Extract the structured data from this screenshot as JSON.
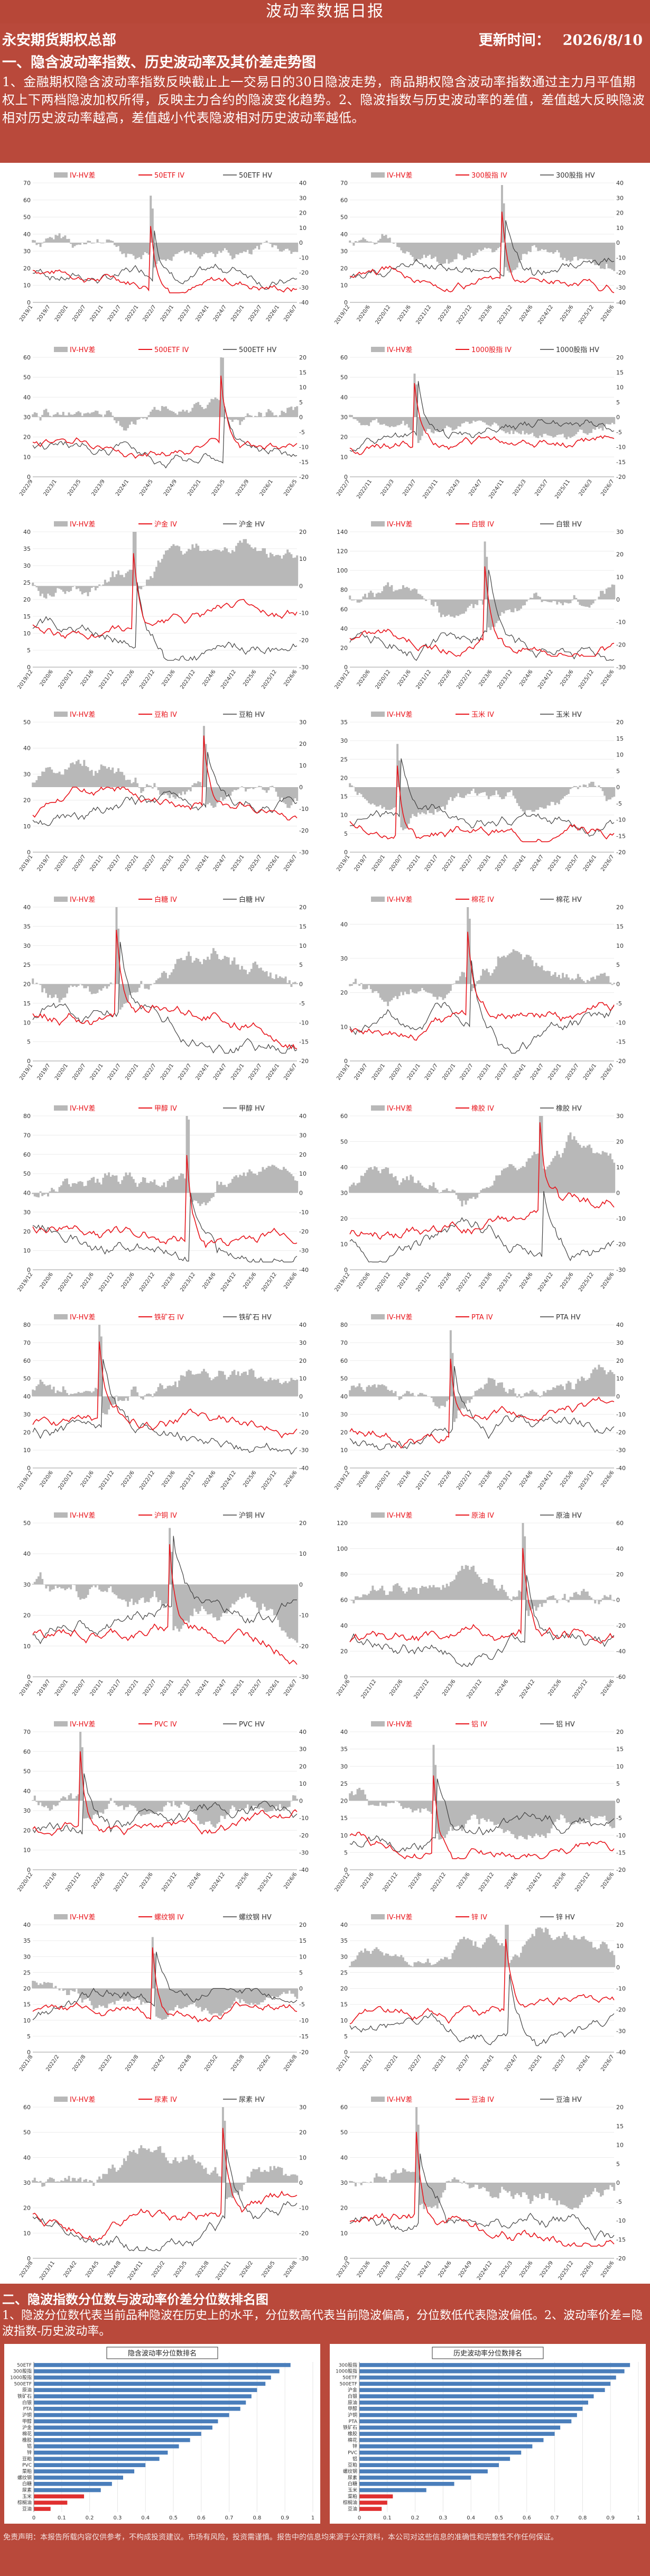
{
  "header": {
    "title": "波动率数据日报",
    "company": "永安期货期权总部",
    "update_label": "更新时间：",
    "update_date": "2026/8/10",
    "section1_title": "一、隐含波动率指数、历史波动率及其价差走势图",
    "section1_desc": "1、金融期权隐含波动率指数反映截止上一交易日的30日隐波走势，商品期权隐含波动率指数通过主力月平值期权上下两档隐波加权所得，反映主力合约的隐波变化趋势。2、隐波指数与历史波动率的差值，差值越大反映隐波相对历史波动率越高，差值越小代表隐波相对历史波动率越低。"
  },
  "colors": {
    "header_bg": "#b74738",
    "panel_bg": "#b9493b",
    "iv": "#e8141b",
    "hv": "#404040",
    "diff": "#b8b8b8",
    "rank_bar": "#4a7ebb",
    "rank_bar_low": "#e03030"
  },
  "chart_data": [
    {
      "type": "line",
      "series": [
        {
          "name": "IV-HV差"
        },
        {
          "name": "50ETF IV"
        },
        {
          "name": "50ETF HV"
        }
      ],
      "ylim_left": [
        0,
        70
      ],
      "ylim_right": [
        -40,
        40
      ],
      "xticks": [
        "2019/1",
        "2019/7",
        "2020/1",
        "2020/7",
        "2021/1",
        "2021/7",
        "2022/1",
        "2022/7",
        "2023/1",
        "2023/7",
        "2024/1",
        "2024/7",
        "2025/1",
        "2025/7",
        "2026/1",
        "2026/7"
      ]
    },
    {
      "type": "line",
      "series": [
        {
          "name": "IV-HV差"
        },
        {
          "name": "300股指 IV"
        },
        {
          "name": "300股指 HV"
        }
      ],
      "ylim_left": [
        0,
        70
      ],
      "ylim_right": [
        -40,
        40
      ],
      "xticks": [
        "2019/12",
        "2020/6",
        "2020/12",
        "2021/6",
        "2021/12",
        "2022/6",
        "2022/12",
        "2023/6",
        "2023/12",
        "2024/6",
        "2024/12",
        "2025/6",
        "2025/12",
        "2026/6"
      ]
    },
    {
      "type": "line",
      "series": [
        {
          "name": "IV-HV差"
        },
        {
          "name": "500ETF IV"
        },
        {
          "name": "500ETF HV"
        }
      ],
      "ylim_left": [
        0,
        60
      ],
      "ylim_right": [
        -20,
        20
      ],
      "xticks": [
        "2022/9",
        "2023/1",
        "2023/5",
        "2023/9",
        "2024/1",
        "2024/5",
        "2024/9",
        "2025/1",
        "2025/5",
        "2025/9",
        "2026/1",
        "2026/5"
      ]
    },
    {
      "type": "line",
      "series": [
        {
          "name": "IV-HV差"
        },
        {
          "name": "1000股指 IV"
        },
        {
          "name": "1000股指 HV"
        }
      ],
      "ylim_left": [
        0,
        60
      ],
      "ylim_right": [
        -20,
        20
      ],
      "xticks": [
        "2022/7",
        "2022/11",
        "2023/3",
        "2023/7",
        "2023/11",
        "2024/3",
        "2024/7",
        "2024/11",
        "2025/3",
        "2025/7",
        "2025/11",
        "2026/3",
        "2026/7"
      ]
    },
    {
      "type": "line",
      "series": [
        {
          "name": "IV-HV差"
        },
        {
          "name": "沪金 IV"
        },
        {
          "name": "沪金 HV"
        }
      ],
      "ylim_left": [
        0,
        40
      ],
      "ylim_right": [
        -30,
        20
      ],
      "xticks": [
        "2019/12",
        "2020/6",
        "2020/12",
        "2021/6",
        "2021/12",
        "2022/6",
        "2022/12",
        "2023/6",
        "2023/12",
        "2024/6",
        "2024/12",
        "2025/6",
        "2025/12",
        "2026/6"
      ]
    },
    {
      "type": "line",
      "series": [
        {
          "name": "IV-HV差"
        },
        {
          "name": "白银 IV"
        },
        {
          "name": "白银 HV"
        }
      ],
      "ylim_left": [
        0,
        140
      ],
      "ylim_right": [
        -30,
        30
      ],
      "xticks": [
        "2019/12",
        "2020/6",
        "2020/12",
        "2021/6",
        "2021/12",
        "2022/6",
        "2022/12",
        "2023/6",
        "2023/12",
        "2024/6",
        "2024/12",
        "2025/6",
        "2025/12",
        "2026/6"
      ]
    },
    {
      "type": "line",
      "series": [
        {
          "name": "IV-HV差"
        },
        {
          "name": "豆粕 IV"
        },
        {
          "name": "豆粕 HV"
        }
      ],
      "ylim_left": [
        0,
        50
      ],
      "ylim_right": [
        -30,
        30
      ],
      "xticks": [
        "2019/1",
        "2019/7",
        "2020/1",
        "2020/7",
        "2021/1",
        "2021/7",
        "2022/1",
        "2022/7",
        "2023/1",
        "2023/7",
        "2024/1",
        "2024/7",
        "2025/1",
        "2025/7",
        "2026/1",
        "2026/7"
      ]
    },
    {
      "type": "line",
      "series": [
        {
          "name": "IV-HV差"
        },
        {
          "name": "玉米 IV"
        },
        {
          "name": "玉米 HV"
        }
      ],
      "ylim_left": [
        0,
        35
      ],
      "ylim_right": [
        -20,
        20
      ],
      "xticks": [
        "2019/1",
        "2019/7",
        "2020/1",
        "2020/7",
        "2021/1",
        "2021/7",
        "2022/1",
        "2022/7",
        "2023/1",
        "2023/7",
        "2024/1",
        "2024/7",
        "2025/1",
        "2025/7",
        "2026/1",
        "2026/7"
      ]
    },
    {
      "type": "line",
      "series": [
        {
          "name": "IV-HV差"
        },
        {
          "name": "白糖 IV"
        },
        {
          "name": "白糖 HV"
        }
      ],
      "ylim_left": [
        0,
        40
      ],
      "ylim_right": [
        -20,
        20
      ],
      "xticks": [
        "2019/1",
        "2019/7",
        "2020/1",
        "2020/7",
        "2021/1",
        "2021/7",
        "2022/1",
        "2022/7",
        "2023/1",
        "2023/7",
        "2024/1",
        "2024/7",
        "2025/1",
        "2025/7",
        "2026/1",
        "2026/7"
      ]
    },
    {
      "type": "line",
      "series": [
        {
          "name": "IV-HV差"
        },
        {
          "name": "棉花 IV"
        },
        {
          "name": "棉花 HV"
        }
      ],
      "ylim_left": [
        0,
        45
      ],
      "ylim_right": [
        -20,
        20
      ],
      "xticks": [
        "2019/1",
        "2019/7",
        "2020/1",
        "2020/7",
        "2021/1",
        "2021/7",
        "2022/1",
        "2022/7",
        "2023/1",
        "2023/7",
        "2024/1",
        "2024/7",
        "2025/1",
        "2025/7",
        "2026/1",
        "2026/7"
      ]
    },
    {
      "type": "line",
      "series": [
        {
          "name": "IV-HV差"
        },
        {
          "name": "甲醇 IV"
        },
        {
          "name": "甲醇 HV"
        }
      ],
      "ylim_left": [
        0,
        80
      ],
      "ylim_right": [
        -40,
        40
      ],
      "xticks": [
        "2019/12",
        "2020/6",
        "2020/12",
        "2021/6",
        "2021/12",
        "2022/6",
        "2022/12",
        "2023/6",
        "2023/12",
        "2024/6",
        "2024/12",
        "2025/6",
        "2025/12",
        "2026/6"
      ]
    },
    {
      "type": "line",
      "series": [
        {
          "name": "IV-HV差"
        },
        {
          "name": "橡胶 IV"
        },
        {
          "name": "橡胶 HV"
        }
      ],
      "ylim_left": [
        0,
        60
      ],
      "ylim_right": [
        -30,
        30
      ],
      "xticks": [
        "2019/12",
        "2020/6",
        "2020/12",
        "2021/6",
        "2021/12",
        "2022/6",
        "2022/12",
        "2023/6",
        "2023/12",
        "2024/6",
        "2024/12",
        "2025/6",
        "2025/12",
        "2026/6"
      ]
    },
    {
      "type": "line",
      "series": [
        {
          "name": "IV-HV差"
        },
        {
          "name": "铁矿石 IV"
        },
        {
          "name": "铁矿石 HV"
        }
      ],
      "ylim_left": [
        0,
        80
      ],
      "ylim_right": [
        -40,
        40
      ],
      "xticks": [
        "2019/12",
        "2020/6",
        "2020/12",
        "2021/6",
        "2021/12",
        "2022/6",
        "2022/12",
        "2023/6",
        "2023/12",
        "2024/6",
        "2024/12",
        "2025/6",
        "2025/12",
        "2026/6"
      ]
    },
    {
      "type": "line",
      "series": [
        {
          "name": "IV-HV差"
        },
        {
          "name": "PTA IV"
        },
        {
          "name": "PTA HV"
        }
      ],
      "ylim_left": [
        0,
        80
      ],
      "ylim_right": [
        -40,
        40
      ],
      "xticks": [
        "2019/12",
        "2020/6",
        "2020/12",
        "2021/6",
        "2021/12",
        "2022/6",
        "2022/12",
        "2023/6",
        "2023/12",
        "2024/6",
        "2024/12",
        "2025/6",
        "2025/12",
        "2026/6"
      ]
    },
    {
      "type": "line",
      "series": [
        {
          "name": "IV-HV差"
        },
        {
          "name": "沪铜 IV"
        },
        {
          "name": "沪铜 HV"
        }
      ],
      "ylim_left": [
        0,
        50
      ],
      "ylim_right": [
        -30,
        20
      ],
      "xticks": [
        "2019/1",
        "2019/7",
        "2020/1",
        "2020/7",
        "2021/1",
        "2021/7",
        "2022/1",
        "2022/7",
        "2023/1",
        "2023/7",
        "2024/1",
        "2024/7",
        "2025/1",
        "2025/7",
        "2026/1",
        "2026/7"
      ]
    },
    {
      "type": "line",
      "series": [
        {
          "name": "IV-HV差"
        },
        {
          "name": "原油 IV"
        },
        {
          "name": "原油 HV"
        }
      ],
      "ylim_left": [
        0,
        120
      ],
      "ylim_right": [
        -60,
        60
      ],
      "xticks": [
        "2021/6",
        "2021/12",
        "2022/6",
        "2022/12",
        "2023/6",
        "2023/12",
        "2024/6",
        "2024/12",
        "2025/6",
        "2025/12",
        "2026/6"
      ]
    },
    {
      "type": "line",
      "series": [
        {
          "name": "IV-HV差"
        },
        {
          "name": "PVC IV"
        },
        {
          "name": "PVC HV"
        }
      ],
      "ylim_left": [
        0,
        70
      ],
      "ylim_right": [
        -40,
        40
      ],
      "xticks": [
        "2020/12",
        "2021/6",
        "2021/12",
        "2022/6",
        "2022/12",
        "2023/6",
        "2023/12",
        "2024/6",
        "2024/12",
        "2025/6",
        "2025/12",
        "2026/6"
      ]
    },
    {
      "type": "line",
      "series": [
        {
          "name": "IV-HV差"
        },
        {
          "name": "铝 IV"
        },
        {
          "name": "铝 HV"
        }
      ],
      "ylim_left": [
        0,
        40
      ],
      "ylim_right": [
        -20,
        20
      ],
      "xticks": [
        "2020/12",
        "2021/6",
        "2021/12",
        "2022/6",
        "2022/12",
        "2023/6",
        "2023/12",
        "2024/6",
        "2024/12",
        "2025/6",
        "2025/12",
        "2026/6"
      ]
    },
    {
      "type": "line",
      "series": [
        {
          "name": "IV-HV差"
        },
        {
          "name": "螺纹钢 IV"
        },
        {
          "name": "螺纹钢 HV"
        }
      ],
      "ylim_left": [
        0,
        40
      ],
      "ylim_right": [
        -20,
        20
      ],
      "xticks": [
        "2021/8",
        "2022/2",
        "2022/8",
        "2023/2",
        "2023/8",
        "2024/2",
        "2024/8",
        "2025/2",
        "2025/8",
        "2026/2",
        "2026/8"
      ]
    },
    {
      "type": "line",
      "series": [
        {
          "name": "IV-HV差"
        },
        {
          "name": "锌 IV"
        },
        {
          "name": "锌 HV"
        }
      ],
      "ylim_left": [
        0,
        40
      ],
      "ylim_right": [
        -40,
        20
      ],
      "xticks": [
        "2021/1",
        "2021/7",
        "2022/1",
        "2022/7",
        "2023/1",
        "2023/7",
        "2024/1",
        "2024/7",
        "2025/1",
        "2025/7",
        "2026/1",
        "2026/7"
      ]
    },
    {
      "type": "line",
      "series": [
        {
          "name": "IV-HV差"
        },
        {
          "name": "尿素 IV"
        },
        {
          "name": "尿素 HV"
        }
      ],
      "ylim_left": [
        0,
        60
      ],
      "ylim_right": [
        -30,
        30
      ],
      "xticks": [
        "2023/8",
        "2023/11",
        "2024/2",
        "2024/5",
        "2024/8",
        "2024/11",
        "2025/2",
        "2025/5",
        "2025/8",
        "2025/11",
        "2026/2",
        "2026/5",
        "2026/8"
      ]
    },
    {
      "type": "line",
      "series": [
        {
          "name": "IV-HV差"
        },
        {
          "name": "豆油 IV"
        },
        {
          "name": "豆油 HV"
        }
      ],
      "ylim_left": [
        0,
        60
      ],
      "ylim_right": [
        -20,
        20
      ],
      "xticks": [
        "2023/3",
        "2023/6",
        "2023/9",
        "2023/12",
        "2024/3",
        "2024/6",
        "2024/9",
        "2024/12",
        "2025/3",
        "2025/6",
        "2025/9",
        "2025/12",
        "2026/3",
        "2026/6"
      ]
    },
    {
      "type": "line",
      "series": [
        {
          "name": "IV-HV差"
        },
        {
          "name": "棕榈油 IV"
        },
        {
          "name": "棕榈油 HV"
        }
      ],
      "ylim_left": [
        0,
        45
      ],
      "ylim_right": [
        -20,
        20
      ],
      "xticks": [
        "2021/6",
        "2021/12",
        "2022/6",
        "2022/12",
        "2023/6",
        "2023/12",
        "2024/6",
        "2024/12",
        "2025/6",
        "2025/12",
        "2026/6"
      ]
    },
    {
      "type": "line",
      "series": [
        {
          "name": "IV-HV差"
        },
        {
          "name": "菜粕 IV"
        },
        {
          "name": "菜粕 HV"
        }
      ],
      "ylim_left": [
        0,
        60
      ],
      "ylim_right": [
        -20,
        20
      ],
      "xticks": [
        "2021/6",
        "2021/12",
        "2022/6",
        "2022/12",
        "2023/6",
        "2023/12",
        "2024/6",
        "2024/12",
        "2025/6",
        "2025/12",
        "2026/6"
      ]
    },
    {
      "type": "bar",
      "orientation": "horizontal",
      "title": "隐含波动率分位数排名",
      "categories": [
        "50ETF",
        "300股指",
        "1000股指",
        "500ETF",
        "原油",
        "铁矿石",
        "白银",
        "PTA",
        "沪铜",
        "甲醇",
        "沪金",
        "棉花",
        "橡胶",
        "铝",
        "锌",
        "豆粕",
        "PVC",
        "菜粕",
        "螺纹钢",
        "白糖",
        "尿素",
        "玉米",
        "棕榈油",
        "豆油"
      ],
      "values": [
        0.92,
        0.88,
        0.85,
        0.83,
        0.8,
        0.78,
        0.76,
        0.74,
        0.7,
        0.66,
        0.64,
        0.6,
        0.56,
        0.52,
        0.48,
        0.45,
        0.4,
        0.36,
        0.32,
        0.28,
        0.24,
        0.18,
        0.12,
        0.06
      ],
      "xlim": [
        0,
        1
      ],
      "xticks": [
        "0",
        "0.1",
        "0.2",
        "0.3",
        "0.4",
        "0.5",
        "0.6",
        "0.7",
        "0.8",
        "0.9",
        "1"
      ]
    },
    {
      "type": "bar",
      "orientation": "horizontal",
      "title": "历史波动率分位数排名",
      "categories": [
        "300股指",
        "1000股指",
        "50ETF",
        "500ETF",
        "沪金",
        "白银",
        "原油",
        "甲醇",
        "沪铜",
        "PTA",
        "铁矿石",
        "橡胶",
        "棉花",
        "锌",
        "PVC",
        "铝",
        "豆粕",
        "螺纹钢",
        "尿素",
        "白糖",
        "玉米",
        "菜粕",
        "棕榈油",
        "豆油"
      ],
      "values": [
        0.97,
        0.95,
        0.92,
        0.9,
        0.88,
        0.84,
        0.82,
        0.8,
        0.78,
        0.76,
        0.72,
        0.7,
        0.66,
        0.62,
        0.58,
        0.54,
        0.5,
        0.46,
        0.4,
        0.34,
        0.24,
        0.12,
        0.1,
        0.08
      ],
      "xlim": [
        0,
        1
      ],
      "xticks": [
        "0",
        "0.1",
        "0.2",
        "0.3",
        "0.4",
        "0.5",
        "0.6",
        "0.7",
        "0.8",
        "0.9",
        "1"
      ]
    }
  ],
  "bottom": {
    "section2_title": "二、隐波指数分位数与波动率价差分位数排名图",
    "section2_desc": "1、隐波分位数代表当前品种隐波在历史上的水平，分位数高代表当前隐波偏高，分位数低代表隐波偏低。2、波动率价差=隐波指数-历史波动率。",
    "disclaimer": "免责声明：本报告所载内容仅供参考，不构成投资建议。市场有风险，投资需谨慎。报告中的信息均来源于公开资料，本公司对这些信息的准确性和完整性不作任何保证。"
  }
}
